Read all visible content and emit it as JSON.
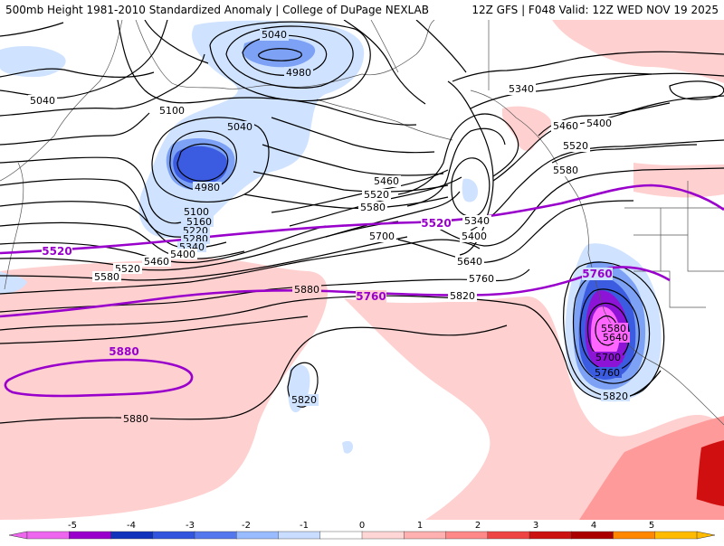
{
  "header": {
    "left_title": "500mb Height 1981-2010 Standardized Anomaly | College of DuPage NEXLAB",
    "right_title": "12Z GFS | F048 Valid: 12Z WED NOV 19 2025"
  },
  "contour_labels": {
    "c5040a": "5040",
    "c4980a": "4980",
    "c5040b": "5040",
    "c5100a": "5100",
    "c5040c": "5040",
    "c4980b": "4980",
    "c5100b": "5100",
    "c5160": "5160",
    "c5220": "5220",
    "c5280": "5280",
    "c5340a": "5340",
    "c5400a": "5400",
    "c5460a": "5460",
    "c5520a": "5520",
    "c5580a": "5580",
    "c5340b": "5340",
    "c5460b": "5460",
    "c5400b": "5400",
    "c5520b": "5520",
    "c5580b": "5580",
    "c5460c": "5460",
    "c5520c": "5520",
    "c5580c": "5580",
    "c5340c": "5340",
    "c5400c": "5400",
    "c5700a": "5700",
    "c5640a": "5640",
    "c5760a": "5760",
    "c5820a": "5820",
    "c5880a": "5880",
    "c5820b": "5820",
    "c5880b": "5880",
    "c5580d": "5580",
    "c5640b": "5640",
    "c5700b": "5700",
    "c5760b": "5760",
    "c5820c": "5820"
  },
  "purple_labels": {
    "p5520a": "5520",
    "p5520b": "5520",
    "p5760a": "5760",
    "p5760b": "5760",
    "p5880": "5880"
  },
  "legend": {
    "ticks": [
      "-5",
      "-4",
      "-3",
      "-2",
      "-1",
      "0",
      "1",
      "2",
      "3",
      "4",
      "5"
    ],
    "colors": [
      "#ee66ee",
      "#9900cc",
      "#1133bb",
      "#3355dd",
      "#5577ee",
      "#99bbff",
      "#c8ddff",
      "#ffffff",
      "#ffd6d6",
      "#ffb0b0",
      "#ff8888",
      "#ee4444",
      "#cc1111",
      "#aa0000",
      "#ff8800",
      "#ffbb00"
    ]
  },
  "colors": {
    "contour": "#000000",
    "purple": "#9900cc",
    "anom_pos_light": "#ffd0d0",
    "anom_pos_mid": "#ff9a9a",
    "anom_pos_dark": "#d01010",
    "anom_neg_light": "#cfe2ff",
    "anom_neg_mid": "#7da2f5",
    "anom_neg_dark": "#3b5ce0",
    "anom_neg_purple": "#8d14d6",
    "anom_neg_magenta": "#ff66ff"
  }
}
